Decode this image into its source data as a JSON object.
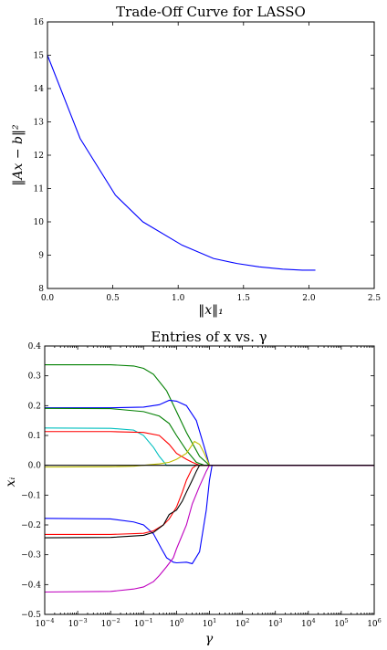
{
  "chart_data": [
    {
      "type": "line",
      "title": "Trade-Off Curve for LASSO",
      "xlabel": "‖x‖₁",
      "ylabel": "‖Ax − b‖²",
      "xlim": [
        0,
        2.5
      ],
      "ylim": [
        8,
        16
      ],
      "xticks": [
        0,
        0.5,
        1,
        1.5,
        2,
        2.5
      ],
      "xtick_labels": [
        "0.0",
        "0.5",
        "1.0",
        "1.5",
        "2.0",
        "2.5"
      ],
      "yticks": [
        8,
        9,
        10,
        11,
        12,
        13,
        14,
        15,
        16
      ],
      "ytick_labels": [
        "8",
        "9",
        "10",
        "11",
        "12",
        "13",
        "14",
        "15",
        "16"
      ],
      "grid": false,
      "series": [
        {
          "color": "#0000ff",
          "x": [
            0,
            0.25,
            0.52,
            0.73,
            1.03,
            1.27,
            1.45,
            1.62,
            1.8,
            1.95,
            2.05
          ],
          "y": [
            15.0,
            12.5,
            10.8,
            10.0,
            9.3,
            8.9,
            8.75,
            8.65,
            8.58,
            8.55,
            8.55
          ]
        }
      ]
    },
    {
      "type": "line",
      "title": "Entries of x vs. γ",
      "xlabel": "γ",
      "ylabel": "xᵢ",
      "xscale": "log",
      "xlim": [
        0.0001,
        1000000
      ],
      "ylim": [
        -0.5,
        0.4
      ],
      "xticks": [
        0.0001,
        0.001,
        0.01,
        0.1,
        1,
        10,
        100,
        1000,
        10000,
        100000,
        1000000
      ],
      "xtick_labels": [
        {
          "base": "10",
          "exp": "−4"
        },
        {
          "base": "10",
          "exp": "−3"
        },
        {
          "base": "10",
          "exp": "−2"
        },
        {
          "base": "10",
          "exp": "−1"
        },
        {
          "base": "10",
          "exp": "0"
        },
        {
          "base": "10",
          "exp": "1"
        },
        {
          "base": "10",
          "exp": "2"
        },
        {
          "base": "10",
          "exp": "3"
        },
        {
          "base": "10",
          "exp": "4"
        },
        {
          "base": "10",
          "exp": "5"
        },
        {
          "base": "10",
          "exp": "6"
        }
      ],
      "yticks": [
        -0.5,
        -0.4,
        -0.3,
        -0.2,
        -0.1,
        0,
        0.1,
        0.2,
        0.3,
        0.4
      ],
      "ytick_labels": [
        "−0.5",
        "−0.4",
        "−0.3",
        "−0.2",
        "−0.1",
        "0.0",
        "0.1",
        "0.2",
        "0.3",
        "0.4"
      ],
      "grid": false,
      "series": [
        {
          "color": "#007f00",
          "x": [
            0.0001,
            0.01,
            0.05,
            0.1,
            0.2,
            0.5,
            1,
            2,
            5,
            10,
            15,
            1000000
          ],
          "y": [
            0.337,
            0.337,
            0.333,
            0.325,
            0.305,
            0.25,
            0.18,
            0.11,
            0.03,
            0.0,
            0.0,
            0.0
          ]
        },
        {
          "color": "#0000ff",
          "x": [
            0.0001,
            0.01,
            0.1,
            0.3,
            0.6,
            1,
            2,
            4,
            7,
            10,
            15,
            1000000
          ],
          "y": [
            0.193,
            0.193,
            0.195,
            0.203,
            0.218,
            0.215,
            0.2,
            0.15,
            0.06,
            0.0,
            0.0,
            0.0
          ]
        },
        {
          "color": "#007f00",
          "x": [
            0.0001,
            0.01,
            0.1,
            0.3,
            0.6,
            1,
            2,
            4,
            7,
            10,
            1000000
          ],
          "y": [
            0.191,
            0.19,
            0.18,
            0.165,
            0.14,
            0.1,
            0.05,
            0.01,
            0.0,
            0.0,
            0.0
          ]
        },
        {
          "color": "#00bfbf",
          "x": [
            0.0001,
            0.01,
            0.05,
            0.1,
            0.2,
            0.3,
            0.5,
            1,
            1000000
          ],
          "y": [
            0.125,
            0.124,
            0.118,
            0.1,
            0.06,
            0.03,
            0.0,
            0.0,
            0.0
          ]
        },
        {
          "color": "#ff0000",
          "x": [
            0.0001,
            0.01,
            0.1,
            0.3,
            0.6,
            1,
            2,
            3,
            5,
            1000000
          ],
          "y": [
            0.113,
            0.113,
            0.11,
            0.1,
            0.07,
            0.04,
            0.02,
            0.01,
            0.0,
            0.0
          ]
        },
        {
          "color": "#bfbf00",
          "x": [
            0.0001,
            0.01,
            0.05,
            0.1,
            0.3,
            0.6,
            1,
            2,
            3.5,
            5,
            7,
            10,
            1000000
          ],
          "y": [
            -0.006,
            -0.005,
            -0.003,
            0.0,
            0.005,
            0.01,
            0.02,
            0.04,
            0.08,
            0.07,
            0.04,
            0.0,
            0.0
          ]
        },
        {
          "color": "#0000ff",
          "x": [
            0.0001,
            0.01,
            0.05,
            0.1,
            0.2,
            0.35,
            0.5,
            0.8,
            1,
            2,
            3,
            5,
            8,
            10,
            12,
            1000000
          ],
          "y": [
            -0.178,
            -0.18,
            -0.19,
            -0.2,
            -0.23,
            -0.28,
            -0.31,
            -0.325,
            -0.327,
            -0.325,
            -0.33,
            -0.29,
            -0.15,
            -0.05,
            0.0,
            0.0
          ]
        },
        {
          "color": "#ff0000",
          "x": [
            0.0001,
            0.01,
            0.1,
            0.2,
            0.4,
            0.6,
            1,
            1.5,
            2,
            3,
            4,
            1000000
          ],
          "y": [
            -0.232,
            -0.232,
            -0.228,
            -0.22,
            -0.2,
            -0.18,
            -0.14,
            -0.09,
            -0.05,
            -0.01,
            0.0,
            0.0
          ]
        },
        {
          "color": "#000000",
          "x": [
            0.0001,
            0.01,
            0.1,
            0.2,
            0.4,
            0.6,
            1,
            1.5,
            2,
            3,
            4,
            5,
            1000000
          ],
          "y": [
            -0.243,
            -0.242,
            -0.235,
            -0.225,
            -0.2,
            -0.165,
            -0.15,
            -0.12,
            -0.09,
            -0.05,
            -0.02,
            0.0,
            0.0
          ]
        },
        {
          "color": "#bf00bf",
          "x": [
            0.0001,
            0.01,
            0.05,
            0.1,
            0.2,
            0.3,
            0.5,
            0.8,
            1,
            2,
            3,
            5,
            8,
            10,
            1000000
          ],
          "y": [
            -0.425,
            -0.423,
            -0.415,
            -0.408,
            -0.39,
            -0.37,
            -0.34,
            -0.31,
            -0.28,
            -0.2,
            -0.13,
            -0.07,
            -0.02,
            0.0,
            0.0
          ]
        },
        {
          "color": "#000000",
          "x": [
            0.0001,
            1000000
          ],
          "y": [
            0.0,
            0.0
          ]
        }
      ]
    }
  ]
}
